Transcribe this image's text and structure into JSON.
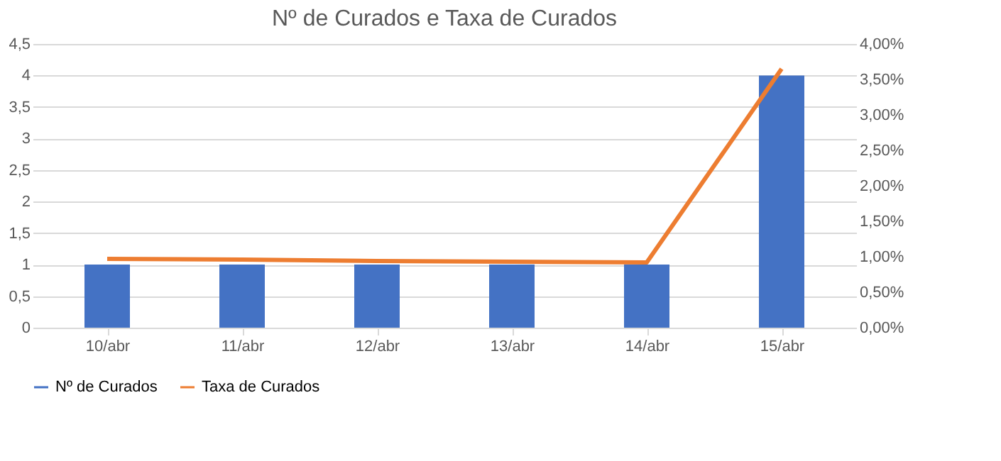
{
  "chart_data": {
    "type": "bar",
    "title": "Nº de Curados e Taxa de Curados",
    "categories": [
      "10/abr",
      "11/abr",
      "12/abr",
      "13/abr",
      "14/abr",
      "15/abr"
    ],
    "series": [
      {
        "name": "Nº de  Curados",
        "color": "#4472c4",
        "values": [
          1,
          1,
          1,
          1,
          1,
          4
        ]
      },
      {
        "name": "Taxa de Curados",
        "type": "line",
        "axis": "y2",
        "color": "#ed7d31",
        "values": [
          0.97,
          0.96,
          0.94,
          0.93,
          0.92,
          3.65
        ]
      }
    ],
    "ylim": [
      0,
      4.5
    ],
    "yticks": [
      0,
      {
        "value": 0.5,
        "label": "0,5"
      },
      1,
      {
        "value": 1.5,
        "label": "1,5"
      },
      2,
      {
        "value": 2.5,
        "label": "2,5"
      },
      3,
      {
        "value": 3.5,
        "label": "3,5"
      },
      4,
      {
        "value": 4.5,
        "label": "4,5"
      }
    ],
    "y2lim": [
      0,
      4
    ],
    "y2ticks": [
      {
        "value": 0,
        "label": "0,00%"
      },
      {
        "value": 0.5,
        "label": "0,50%"
      },
      {
        "value": 1,
        "label": "1,00%"
      },
      {
        "value": 1.5,
        "label": "1,50%"
      },
      {
        "value": 2,
        "label": "2,00%"
      },
      {
        "value": 2.5,
        "label": "2,50%"
      },
      {
        "value": 3,
        "label": "3,00%"
      },
      {
        "value": 3.5,
        "label": "3,50%"
      },
      {
        "value": 4,
        "label": "4,00%"
      }
    ],
    "grid": "y",
    "legend": "bottom"
  }
}
